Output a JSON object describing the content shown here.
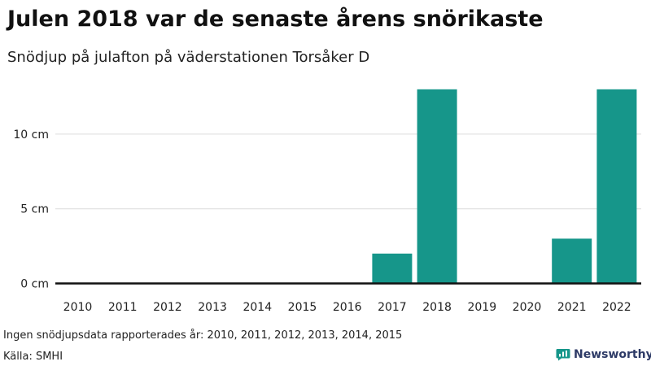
{
  "chart_data": {
    "type": "bar",
    "title": "Julen 2018 var de senaste årens snörikaste",
    "subtitle": "Snödjup på julafton på väderstationen Torsåker D",
    "categories": [
      "2010",
      "2011",
      "2012",
      "2013",
      "2014",
      "2015",
      "2016",
      "2017",
      "2018",
      "2019",
      "2020",
      "2021",
      "2022"
    ],
    "values": [
      0,
      0,
      0,
      0,
      0,
      0,
      0,
      2,
      13,
      0,
      0,
      3,
      13
    ],
    "y_ticks": [
      0,
      5,
      10
    ],
    "y_tick_labels": [
      "0 cm",
      "5 cm",
      "10 cm"
    ],
    "ylim": [
      0,
      13
    ],
    "grid": true,
    "bar_color": "#16968a"
  },
  "footer": {
    "note": "Ingen snödjupsdata rapporterades år: 2010, 2011, 2012, 2013, 2014, 2015",
    "source": "Källa: SMHI",
    "brand": "Newsworthy",
    "brand_icon": "bar-chart-logo-icon",
    "brand_color": "#2d3a66"
  }
}
